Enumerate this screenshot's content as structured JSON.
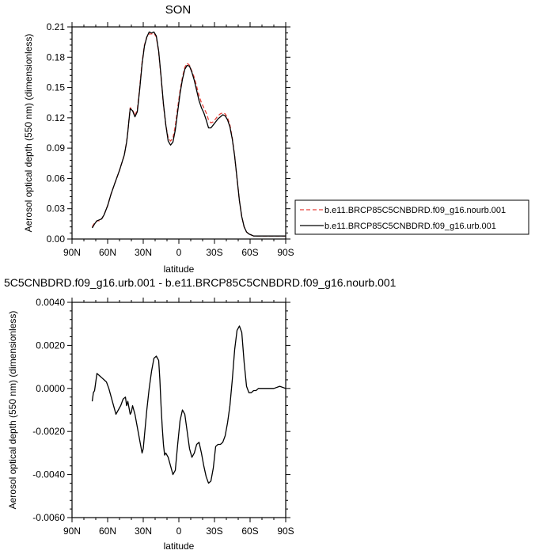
{
  "chart_data": [
    {
      "type": "line",
      "title": "SON",
      "xlabel": "latitude",
      "ylabel": "Aerosol optical depth (550 nm) (dimensionless)",
      "xlim": [
        90,
        -90
      ],
      "ylim": [
        0.0,
        0.21
      ],
      "xticks": [
        90,
        60,
        30,
        0,
        -30,
        -60,
        -90
      ],
      "xtick_labels": [
        "90N",
        "60N",
        "30N",
        "0",
        "30S",
        "60S",
        "90S"
      ],
      "yticks": [
        0.0,
        0.03,
        0.06,
        0.09,
        0.12,
        0.15,
        0.18,
        0.21
      ],
      "ytick_labels": [
        "0.00",
        "0.03",
        "0.06",
        "0.09",
        "0.12",
        "0.15",
        "0.18",
        "0.21"
      ],
      "grid": false,
      "legend_position": "right",
      "series": [
        {
          "name": "b.e11.BRCP85C5CNBDRD.f09_g16.nourb.001",
          "color": "#e8413a",
          "dash": "dashed",
          "x": [
            73,
            71,
            69,
            67,
            65,
            63,
            60,
            57,
            54,
            50,
            46,
            44,
            43,
            42,
            41,
            39,
            37,
            35,
            33,
            31,
            29,
            27,
            25,
            23,
            21,
            19,
            17,
            15,
            13,
            11,
            9,
            7,
            5,
            3,
            1,
            -1,
            -3,
            -5,
            -7,
            -9,
            -11,
            -13,
            -15,
            -17,
            -19,
            -21,
            -23,
            -25,
            -27,
            -29,
            -31,
            -33,
            -35,
            -37,
            -39,
            -41,
            -43,
            -45,
            -47,
            -49,
            -51,
            -53,
            -55,
            -57,
            -59,
            -61,
            -63,
            -65,
            -67,
            -70,
            -75,
            -80,
            -85,
            -90
          ],
          "y": [
            0.012,
            0.016,
            0.018,
            0.018,
            0.02,
            0.024,
            0.033,
            0.045,
            0.055,
            0.068,
            0.083,
            0.096,
            0.106,
            0.118,
            0.13,
            0.128,
            0.122,
            0.128,
            0.15,
            0.175,
            0.192,
            0.2,
            0.203,
            0.203,
            0.204,
            0.2,
            0.185,
            0.16,
            0.133,
            0.113,
            0.1,
            0.097,
            0.1,
            0.112,
            0.13,
            0.147,
            0.16,
            0.17,
            0.174,
            0.172,
            0.166,
            0.16,
            0.151,
            0.142,
            0.135,
            0.13,
            0.125,
            0.118,
            0.115,
            0.116,
            0.119,
            0.122,
            0.124,
            0.125,
            0.124,
            0.12,
            0.113,
            0.1,
            0.082,
            0.06,
            0.038,
            0.022,
            0.012,
            0.007,
            0.005,
            0.004,
            0.003,
            0.003,
            0.003,
            0.003,
            0.003,
            0.003,
            0.003,
            0.003
          ]
        },
        {
          "name": "b.e11.BRCP85C5CNBDRD.f09_g16.urb.001",
          "color": "#000000",
          "dash": "solid",
          "x": [
            73,
            71,
            69,
            67,
            65,
            63,
            60,
            57,
            54,
            50,
            46,
            44,
            43,
            42,
            41,
            39,
            37,
            35,
            33,
            31,
            29,
            27,
            25,
            23,
            21,
            19,
            17,
            15,
            13,
            11,
            9,
            7,
            5,
            3,
            1,
            -1,
            -3,
            -5,
            -7,
            -9,
            -11,
            -13,
            -15,
            -17,
            -19,
            -21,
            -23,
            -25,
            -27,
            -29,
            -31,
            -33,
            -35,
            -37,
            -39,
            -41,
            -43,
            -45,
            -47,
            -49,
            -51,
            -53,
            -55,
            -57,
            -59,
            -61,
            -63,
            -65,
            -67,
            -70,
            -75,
            -80,
            -85,
            -90
          ],
          "y": [
            0.011,
            0.015,
            0.018,
            0.019,
            0.02,
            0.024,
            0.033,
            0.045,
            0.055,
            0.068,
            0.083,
            0.096,
            0.106,
            0.118,
            0.129,
            0.127,
            0.121,
            0.126,
            0.148,
            0.173,
            0.191,
            0.2,
            0.205,
            0.204,
            0.205,
            0.201,
            0.186,
            0.161,
            0.134,
            0.113,
            0.097,
            0.093,
            0.096,
            0.108,
            0.126,
            0.144,
            0.158,
            0.168,
            0.172,
            0.171,
            0.165,
            0.157,
            0.147,
            0.137,
            0.13,
            0.125,
            0.118,
            0.11,
            0.11,
            0.113,
            0.116,
            0.119,
            0.121,
            0.123,
            0.122,
            0.118,
            0.111,
            0.099,
            0.082,
            0.06,
            0.038,
            0.022,
            0.012,
            0.007,
            0.005,
            0.004,
            0.003,
            0.003,
            0.003,
            0.003,
            0.003,
            0.003,
            0.003,
            0.003
          ]
        }
      ]
    },
    {
      "type": "line",
      "title": "5C5CNBDRD.f09_g16.urb.001 - b.e11.BRCP85C5CNBDRD.f09_g16.nourb.001",
      "xlabel": "latitude",
      "ylabel": "Aerosol optical depth (550 nm) (dimensionless)",
      "xlim": [
        90,
        -90
      ],
      "ylim": [
        -0.006,
        0.004
      ],
      "xticks": [
        90,
        60,
        30,
        0,
        -30,
        -60,
        -90
      ],
      "xtick_labels": [
        "90N",
        "60N",
        "30N",
        "0",
        "30S",
        "60S",
        "90S"
      ],
      "yticks": [
        -0.006,
        -0.004,
        -0.002,
        0.0,
        0.002,
        0.004
      ],
      "ytick_labels": [
        "-0.0060",
        "-0.0040",
        "-0.0020",
        "0.0000",
        "0.0020",
        "0.0040"
      ],
      "grid": false,
      "series": [
        {
          "color": "#000000",
          "dash": "solid",
          "x": [
            73,
            72,
            71,
            70,
            69,
            67,
            65,
            63,
            61,
            59,
            57,
            55,
            53,
            51,
            49,
            47,
            45,
            44,
            43,
            42,
            41,
            40,
            39,
            37,
            35,
            33,
            31,
            30,
            29,
            28,
            27,
            25,
            23,
            21,
            19,
            17,
            16,
            15,
            14,
            13,
            12,
            11,
            9,
            7,
            5,
            3,
            1,
            -1,
            -3,
            -5,
            -7,
            -9,
            -11,
            -13,
            -15,
            -17,
            -19,
            -21,
            -23,
            -25,
            -27,
            -29,
            -31,
            -33,
            -35,
            -37,
            -39,
            -41,
            -43,
            -45,
            -47,
            -49,
            -51,
            -53,
            -55,
            -57,
            -59,
            -61,
            -63,
            -65,
            -67,
            -70,
            -75,
            -80,
            -85,
            -90
          ],
          "y": [
            -0.0006,
            -0.0002,
            -0.0001,
            0.0003,
            0.0007,
            0.0006,
            0.0005,
            0.0004,
            0.0003,
            0.0,
            -0.0004,
            -0.0008,
            -0.0012,
            -0.001,
            -0.0008,
            -0.0005,
            -0.0004,
            -0.0008,
            -0.0006,
            -0.0009,
            -0.0012,
            -0.0011,
            -0.0008,
            -0.0012,
            -0.0018,
            -0.0024,
            -0.003,
            -0.0028,
            -0.0022,
            -0.0016,
            -0.001,
            0.0,
            0.0008,
            0.0014,
            0.0015,
            0.0013,
            0.0004,
            -0.0008,
            -0.0018,
            -0.0026,
            -0.0031,
            -0.003,
            -0.0032,
            -0.0036,
            -0.004,
            -0.0038,
            -0.0026,
            -0.0015,
            -0.001,
            -0.0012,
            -0.002,
            -0.0028,
            -0.0032,
            -0.003,
            -0.0026,
            -0.0025,
            -0.003,
            -0.0036,
            -0.0041,
            -0.0044,
            -0.0043,
            -0.0037,
            -0.0027,
            -0.0026,
            -0.0026,
            -0.0025,
            -0.0022,
            -0.0016,
            -0.0008,
            0.0004,
            0.0018,
            0.0027,
            0.0029,
            0.0026,
            0.0012,
            0.0001,
            -0.0002,
            -0.0002,
            -0.0001,
            -0.0001,
            0.0,
            0.0,
            0.0,
            0.0,
            0.0001,
            0.0
          ]
        }
      ]
    }
  ]
}
